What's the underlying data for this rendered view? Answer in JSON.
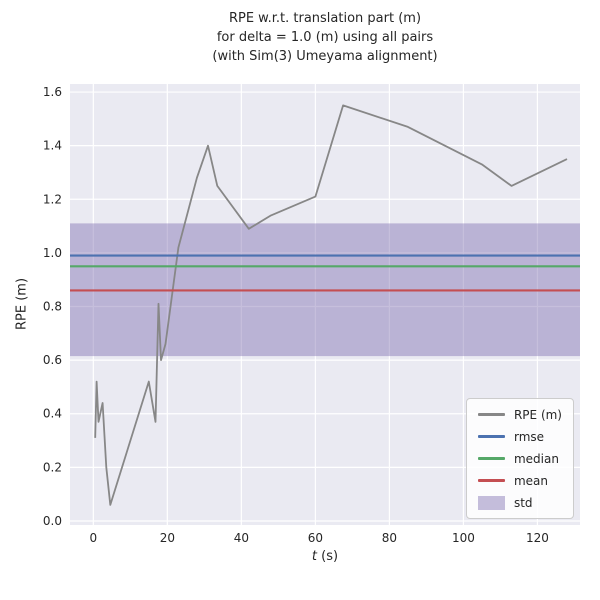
{
  "figure": {
    "title_lines": [
      "RPE w.r.t. translation part (m)",
      "for delta = 1.0 (m) using all pairs",
      "(with Sim(3) Umeyama alignment)"
    ],
    "ylabel": "RPE (m)",
    "xlabel_var": "t",
    "xlabel_unit": " (s)"
  },
  "chart_data": {
    "type": "line",
    "title": "RPE w.r.t. translation part (m) for delta = 1.0 (m) using all pairs (with Sim(3) Umeyama alignment)",
    "xlabel": "t (s)",
    "ylabel": "RPE (m)",
    "xlim": [
      -6.3,
      131.5
    ],
    "ylim": [
      -0.015,
      1.63
    ],
    "xtick_values": [
      0,
      20,
      40,
      60,
      80,
      100,
      120
    ],
    "xtick_labels": [
      "0",
      "20",
      "40",
      "60",
      "80",
      "100",
      "120"
    ],
    "ytick_values": [
      0.0,
      0.2,
      0.4,
      0.6,
      0.8,
      1.0,
      1.2,
      1.4,
      1.6
    ],
    "ytick_labels": [
      "0.0",
      "0.2",
      "0.4",
      "0.6",
      "0.8",
      "1.0",
      "1.2",
      "1.4",
      "1.6"
    ],
    "grid": true,
    "axes_bg": "#eaeaf2",
    "grid_color": "#ffffff",
    "legend_position": "lower right",
    "series": [
      {
        "name": "RPE (m)",
        "type": "line",
        "color": "#878787",
        "x": [
          0.5,
          0.9,
          1.4,
          2.5,
          3.5,
          4.6,
          15.0,
          16.8,
          17.6,
          18.3,
          19.5,
          23.0,
          28.0,
          31.0,
          33.5,
          42.0,
          48.0,
          60.0,
          67.5,
          85.0,
          105.0,
          113.0,
          128.0
        ],
        "y": [
          0.31,
          0.52,
          0.37,
          0.44,
          0.2,
          0.06,
          0.52,
          0.37,
          0.81,
          0.6,
          0.66,
          1.02,
          1.28,
          1.4,
          1.25,
          1.09,
          1.14,
          1.21,
          1.55,
          1.47,
          1.33,
          1.25,
          1.35
        ]
      },
      {
        "name": "rmse",
        "type": "hline",
        "color": "#4c72b0",
        "value": 0.99
      },
      {
        "name": "median",
        "type": "hline",
        "color": "#55a868",
        "value": 0.95
      },
      {
        "name": "mean",
        "type": "hline",
        "color": "#c44e52",
        "value": 0.86
      },
      {
        "name": "std",
        "type": "band",
        "color": "#8172b2",
        "opacity": 0.45,
        "range": [
          0.615,
          1.11
        ]
      }
    ]
  }
}
